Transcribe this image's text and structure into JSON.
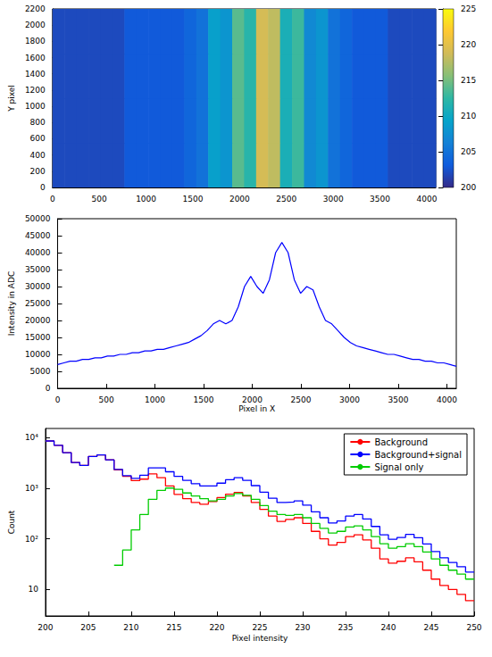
{
  "chart_data": [
    {
      "type": "heatmap",
      "ylabel": "Y pixel",
      "x_bins": [
        0,
        128,
        256,
        384,
        512,
        640,
        768,
        896,
        1024,
        1152,
        1280,
        1408,
        1536,
        1664,
        1792,
        1920,
        2048,
        2176,
        2304,
        2432,
        2560,
        2688,
        2816,
        2944,
        3072,
        3200,
        3328,
        3456,
        3584,
        3712,
        3840,
        3968,
        4096
      ],
      "y_bins": [
        0,
        550,
        1100,
        1650,
        2200
      ],
      "cells": [
        [
          202,
          202,
          202,
          202,
          202,
          202,
          203,
          203,
          203,
          203,
          203,
          204,
          205,
          209,
          208,
          214,
          212,
          219,
          218,
          211,
          213,
          207,
          208,
          205,
          204,
          203,
          203,
          203,
          202,
          202,
          202,
          202
        ],
        [
          202,
          202,
          202,
          202,
          202,
          202,
          203,
          203,
          203,
          203,
          203,
          204,
          205,
          209,
          208,
          214,
          212,
          219,
          218,
          211,
          213,
          207,
          208,
          205,
          204,
          203,
          203,
          203,
          202,
          202,
          202,
          202
        ],
        [
          202,
          202,
          202,
          202,
          202,
          202,
          203,
          203,
          203,
          203,
          203,
          204,
          205,
          209,
          208,
          214,
          212,
          219,
          218,
          211,
          213,
          207,
          208,
          205,
          204,
          203,
          203,
          203,
          202,
          202,
          202,
          202
        ],
        [
          202,
          202,
          202,
          202,
          202,
          202,
          203,
          203,
          203,
          203,
          203,
          204,
          205,
          209,
          208,
          214,
          212,
          219,
          218,
          211,
          213,
          207,
          208,
          205,
          204,
          203,
          203,
          203,
          202,
          202,
          202,
          202
        ]
      ],
      "xlim": [
        0,
        4096
      ],
      "xticks": [
        0,
        500,
        1000,
        1500,
        2000,
        2500,
        3000,
        3500,
        4000
      ],
      "ylim": [
        0,
        2200
      ],
      "yticks": [
        0,
        200,
        400,
        600,
        800,
        1000,
        1200,
        1400,
        1600,
        1800,
        2000,
        2200
      ],
      "colorbar": {
        "range": [
          200,
          225
        ],
        "ticks": [
          200,
          205,
          210,
          215,
          220,
          225
        ]
      }
    },
    {
      "type": "line",
      "xlabel": "Pixel in X",
      "ylabel": "Intensity in ADC",
      "color": "#0000ff",
      "x": [
        0,
        64,
        128,
        192,
        256,
        320,
        384,
        448,
        512,
        576,
        640,
        704,
        768,
        832,
        896,
        960,
        1024,
        1088,
        1152,
        1216,
        1280,
        1344,
        1408,
        1472,
        1536,
        1600,
        1664,
        1728,
        1792,
        1856,
        1920,
        1984,
        2048,
        2112,
        2176,
        2240,
        2304,
        2368,
        2432,
        2496,
        2560,
        2624,
        2688,
        2752,
        2816,
        2880,
        2944,
        3008,
        3072,
        3136,
        3200,
        3264,
        3328,
        3392,
        3456,
        3520,
        3584,
        3648,
        3712,
        3776,
        3840,
        3904,
        3968,
        4032,
        4096
      ],
      "values": [
        7000,
        7500,
        8000,
        8000,
        8500,
        8500,
        9000,
        9000,
        9500,
        9500,
        10000,
        10000,
        10500,
        10500,
        11000,
        11000,
        11500,
        11500,
        12000,
        12500,
        13000,
        13500,
        14500,
        15500,
        17000,
        19000,
        20000,
        19000,
        20000,
        24000,
        30000,
        33000,
        30000,
        28000,
        32000,
        40000,
        43000,
        40000,
        32000,
        28000,
        30000,
        29000,
        24000,
        20000,
        19000,
        17000,
        15000,
        13500,
        12500,
        12000,
        11500,
        11000,
        10500,
        10000,
        10000,
        9500,
        9000,
        8500,
        8500,
        8000,
        8000,
        7500,
        7500,
        7000,
        6500
      ],
      "xlim": [
        0,
        4096
      ],
      "xticks": [
        0,
        500,
        1000,
        1500,
        2000,
        2500,
        3000,
        3500,
        4000
      ],
      "ylim": [
        0,
        50000
      ],
      "yticks": [
        0,
        5000,
        10000,
        15000,
        20000,
        25000,
        30000,
        35000,
        40000,
        45000,
        50000
      ]
    },
    {
      "type": "histogram",
      "xlabel": "Pixel intensity",
      "ylabel": "Count",
      "log": "y",
      "legend": "upper right",
      "bins": [
        200,
        201,
        202,
        203,
        204,
        205,
        206,
        207,
        208,
        209,
        210,
        211,
        212,
        213,
        214,
        215,
        216,
        217,
        218,
        219,
        220,
        221,
        222,
        223,
        224,
        225,
        226,
        227,
        228,
        229,
        230,
        231,
        232,
        233,
        234,
        235,
        236,
        237,
        238,
        239,
        240,
        241,
        242,
        243,
        244,
        245,
        246,
        247,
        248,
        249,
        250
      ],
      "series": [
        {
          "name": "Background",
          "color": "#ff0000",
          "values": [
            8500,
            7000,
            5000,
            3200,
            2800,
            4200,
            4500,
            3600,
            2300,
            1700,
            1400,
            1500,
            1900,
            1600,
            1100,
            750,
            620,
            520,
            480,
            540,
            650,
            760,
            820,
            700,
            520,
            380,
            280,
            220,
            240,
            260,
            200,
            140,
            100,
            75,
            85,
            110,
            120,
            95,
            65,
            40,
            33,
            36,
            42,
            35,
            24,
            16,
            12,
            10,
            8,
            6
          ]
        },
        {
          "name": "Background+signal",
          "color": "#0000ff",
          "values": [
            8500,
            7000,
            5000,
            3200,
            2800,
            4200,
            4500,
            3600,
            2330,
            1760,
            1550,
            1800,
            2500,
            2500,
            2100,
            1700,
            1420,
            1220,
            1100,
            1100,
            1250,
            1460,
            1600,
            1420,
            1120,
            830,
            630,
            520,
            530,
            560,
            460,
            340,
            260,
            205,
            225,
            280,
            300,
            245,
            175,
            120,
            98,
            106,
            122,
            105,
            79,
            56,
            42,
            34,
            28,
            22
          ]
        },
        {
          "name": "Signal only",
          "color": "#00cc00",
          "values": [
            null,
            null,
            null,
            null,
            null,
            null,
            null,
            null,
            30,
            60,
            150,
            300,
            600,
            900,
            1000,
            950,
            800,
            700,
            620,
            560,
            600,
            700,
            780,
            720,
            600,
            450,
            350,
            300,
            290,
            300,
            260,
            200,
            160,
            130,
            140,
            170,
            180,
            150,
            110,
            80,
            65,
            70,
            80,
            70,
            55,
            40,
            30,
            24,
            20,
            16
          ]
        }
      ],
      "xlim": [
        200,
        250
      ],
      "xticks": [
        200,
        205,
        210,
        215,
        220,
        225,
        230,
        235,
        240,
        245,
        250
      ],
      "ylim": [
        3,
        15000
      ],
      "yticks": [
        10,
        {
          "value": 100,
          "label": "10²"
        },
        {
          "value": 1000,
          "label": "10³"
        },
        {
          "value": 10000,
          "label": "10⁴"
        }
      ]
    }
  ]
}
